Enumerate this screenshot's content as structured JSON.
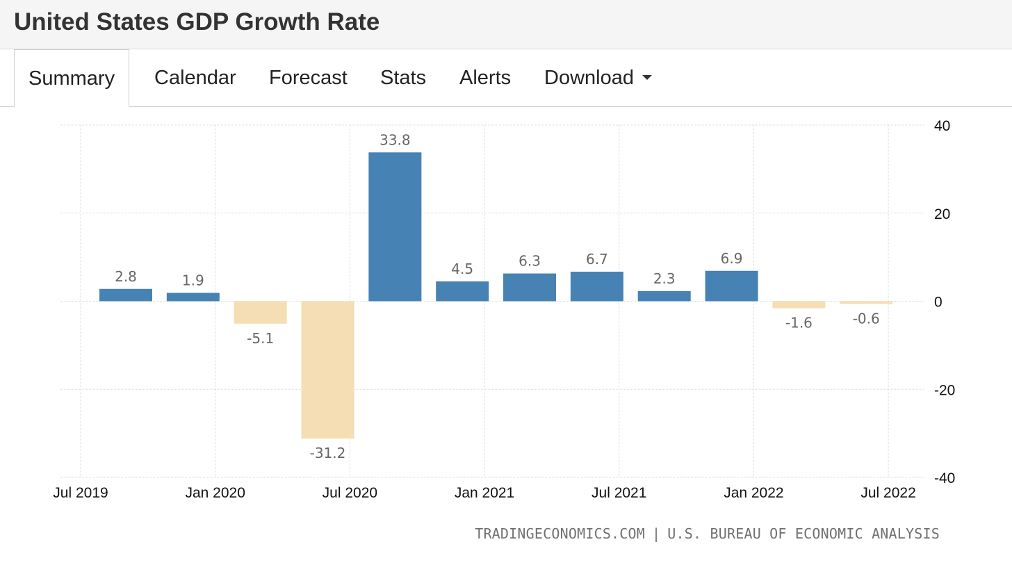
{
  "page": {
    "title": "United States GDP Growth Rate"
  },
  "tabs": [
    {
      "label": "Summary",
      "active": true
    },
    {
      "label": "Calendar",
      "active": false
    },
    {
      "label": "Forecast",
      "active": false
    },
    {
      "label": "Stats",
      "active": false
    },
    {
      "label": "Alerts",
      "active": false
    },
    {
      "label": "Download",
      "active": false,
      "has_dropdown": true
    }
  ],
  "chart_data": {
    "type": "bar",
    "title": "",
    "xlabel": "",
    "ylabel": "",
    "x_dates": [
      "2019-07",
      "2019-10",
      "2020-01",
      "2020-04",
      "2020-07",
      "2020-10",
      "2021-01",
      "2021-04",
      "2021-07",
      "2021-10",
      "2022-01",
      "2022-04"
    ],
    "values": [
      2.8,
      1.9,
      -5.1,
      -31.2,
      33.8,
      4.5,
      6.3,
      6.7,
      2.3,
      6.9,
      -1.6,
      -0.6
    ],
    "data_labels": [
      "2.8",
      "1.9",
      "-5.1",
      "-31.2",
      "33.8",
      "4.5",
      "6.3",
      "6.7",
      "2.3",
      "6.9",
      "-1.6",
      "-0.6"
    ],
    "x_ticks": [
      {
        "date": "2019-07",
        "label": "Jul 2019"
      },
      {
        "date": "2020-01",
        "label": "Jan 2020"
      },
      {
        "date": "2020-07",
        "label": "Jul 2020"
      },
      {
        "date": "2021-01",
        "label": "Jan 2021"
      },
      {
        "date": "2021-07",
        "label": "Jul 2021"
      },
      {
        "date": "2022-01",
        "label": "Jan 2022"
      },
      {
        "date": "2022-07",
        "label": "Jul 2022"
      }
    ],
    "y_ticks": [
      40,
      20,
      0,
      -20,
      -40
    ],
    "ylim": [
      -40,
      40
    ],
    "y_axis_position": "right",
    "grid": true,
    "colors": {
      "positive": "#4682b4",
      "negative": "#f5deb3",
      "grid": "#d9d9d9",
      "label": "#666666"
    }
  },
  "source": {
    "site": "TRADINGECONOMICS.COM",
    "separator": "|",
    "agency": "U.S. BUREAU OF ECONOMIC ANALYSIS"
  }
}
